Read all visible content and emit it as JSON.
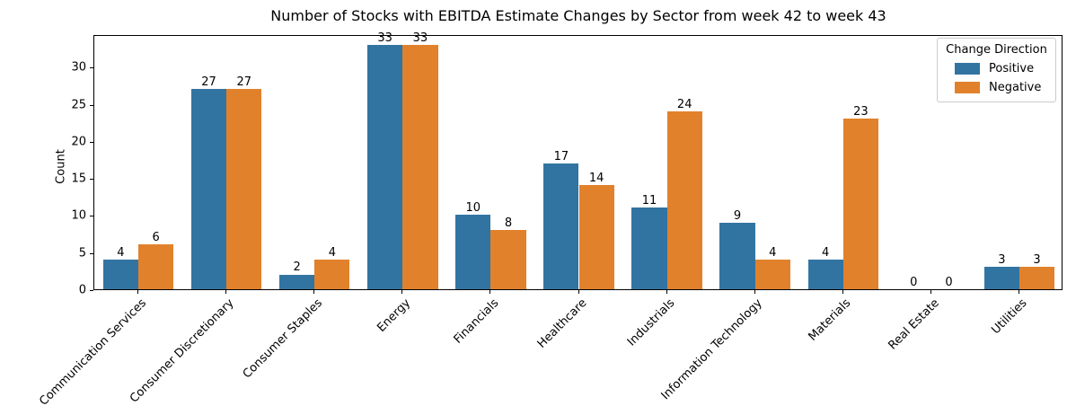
{
  "chart_data": {
    "type": "bar",
    "title": "Number of Stocks with EBITDA Estimate Changes by Sector from week 42 to week 43",
    "xlabel": "",
    "ylabel": "Count",
    "legend_title": "Change Direction",
    "legend_position": "upper right",
    "grid": false,
    "bar_value_labels": true,
    "categories": [
      "Communication Services",
      "Consumer Discretionary",
      "Consumer Staples",
      "Energy",
      "Financials",
      "Healthcare",
      "Industrials",
      "Information Technology",
      "Materials",
      "Real Estate",
      "Utilities"
    ],
    "series": [
      {
        "name": "Positive",
        "color": "#3274a1",
        "values": [
          4,
          27,
          2,
          33,
          10,
          17,
          11,
          9,
          4,
          0,
          3
        ]
      },
      {
        "name": "Negative",
        "color": "#e1812c",
        "values": [
          6,
          27,
          4,
          33,
          8,
          14,
          24,
          4,
          23,
          0,
          3
        ]
      }
    ],
    "ylim": [
      0,
      34.4
    ],
    "yticks": [
      0,
      5,
      10,
      15,
      20,
      25,
      30
    ]
  }
}
